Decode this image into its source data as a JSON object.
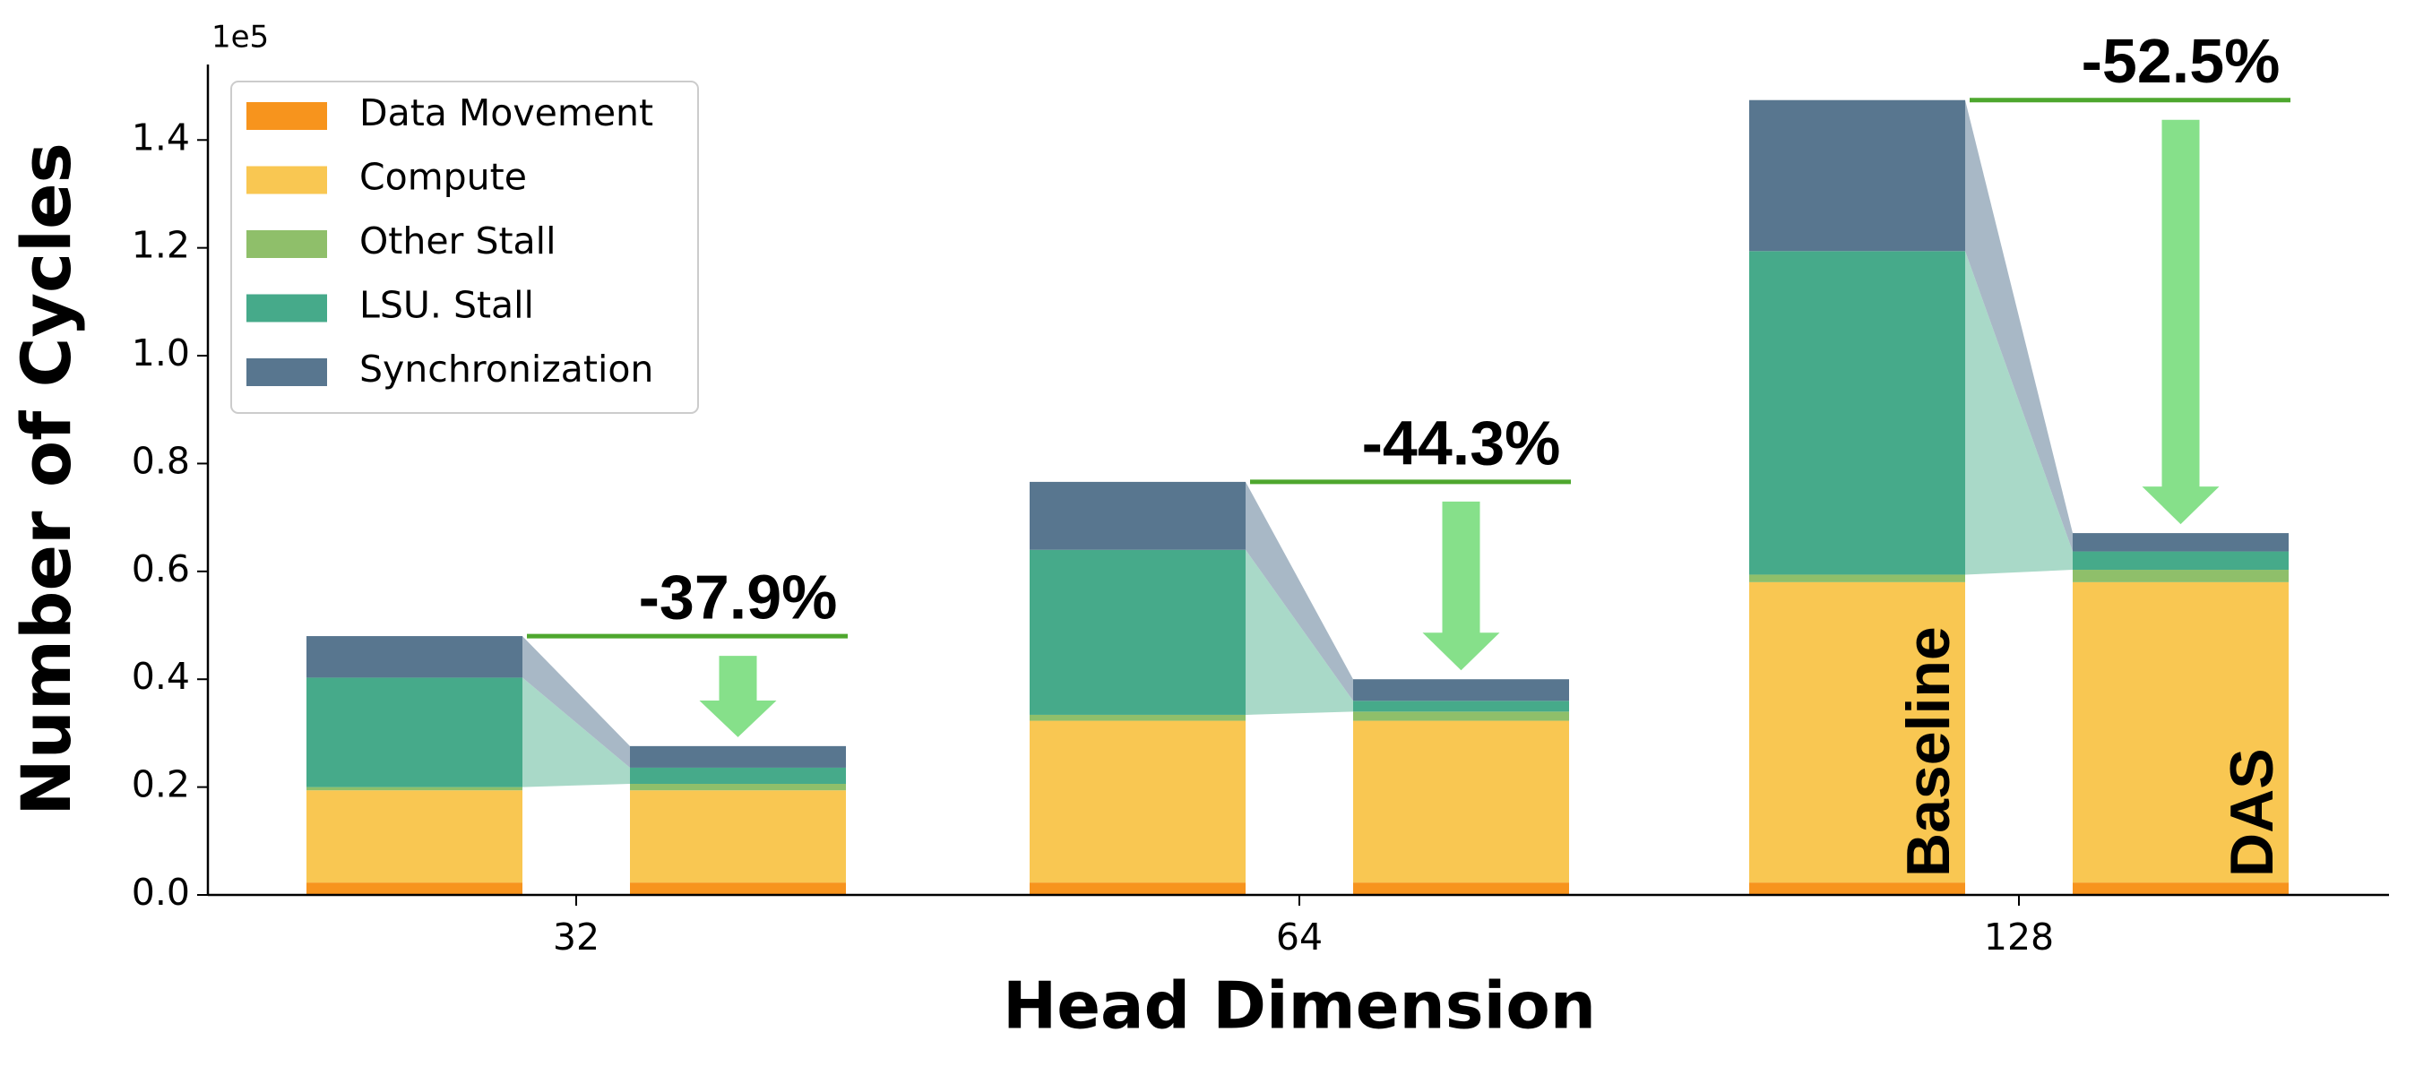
{
  "chart_data": {
    "type": "grouped_stacked_bar",
    "x_label": "Head Dimension",
    "y_label": "Number of Cycles",
    "y_offset_label": "1e5",
    "categories": [
      "32",
      "64",
      "128"
    ],
    "bar_labels": [
      "Baseline",
      "DAS"
    ],
    "series": [
      {
        "name": "Data Movement",
        "color": "#f7941d",
        "values": [
          [
            0.023,
            0.023
          ],
          [
            0.023,
            0.023
          ],
          [
            0.023,
            0.023
          ]
        ]
      },
      {
        "name": "Compute",
        "color": "#f9c752",
        "values": [
          [
            0.171,
            0.171
          ],
          [
            0.3,
            0.3
          ],
          [
            0.557,
            0.557
          ]
        ]
      },
      {
        "name": "Other Stall",
        "color": "#8fbf6a",
        "values": [
          [
            0.006,
            0.012
          ],
          [
            0.011,
            0.017
          ],
          [
            0.014,
            0.023
          ]
        ]
      },
      {
        "name": "LSU. Stall",
        "color": "#46aa8a",
        "values": [
          [
            0.203,
            0.03
          ],
          [
            0.306,
            0.02
          ],
          [
            0.6,
            0.034
          ]
        ]
      },
      {
        "name": "Synchronization",
        "color": "#58768f",
        "values": [
          [
            0.077,
            0.04
          ],
          [
            0.126,
            0.04
          ],
          [
            0.28,
            0.034
          ]
        ]
      }
    ],
    "annotations": [
      "-37.9%",
      "-44.3%",
      "-52.5%"
    ],
    "ylim": [
      0,
      1.54
    ],
    "yticks": [
      {
        "value": 0,
        "label": "0.0"
      },
      0.2,
      0.4,
      0.6,
      0.8,
      {
        "value": 1,
        "label": "1.0"
      },
      1.2,
      1.4
    ],
    "legend": "upper left"
  }
}
